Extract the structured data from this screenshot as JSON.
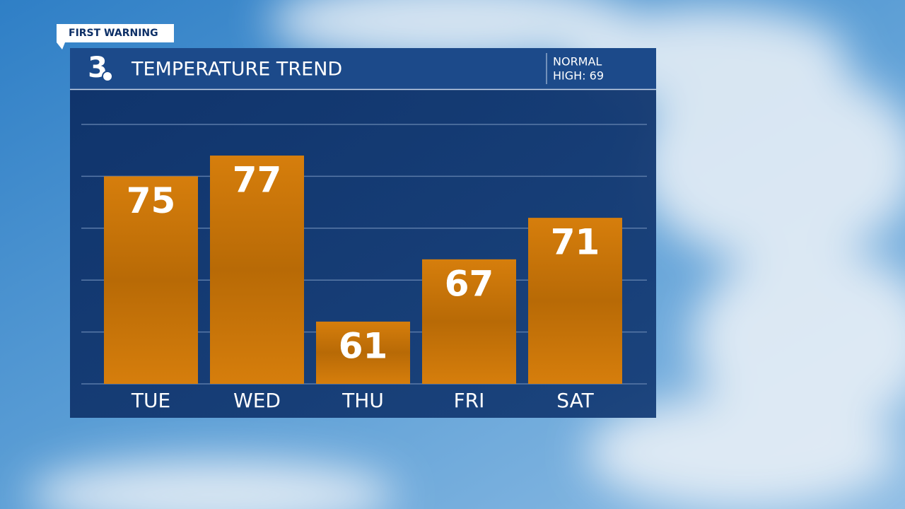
{
  "chart_data": {
    "type": "bar",
    "badge": "FIRST WARNING",
    "logo": "3",
    "title": "TEMPERATURE TREND",
    "annotation": [
      "NORMAL",
      "HIGH: 69"
    ],
    "categories": [
      "TUE",
      "WED",
      "THU",
      "FRI",
      "SAT"
    ],
    "values": [
      75,
      77,
      61,
      67,
      71
    ],
    "color": "#d47c0b",
    "ylim": [
      55,
      80
    ],
    "yticks": [
      55,
      60,
      65,
      70,
      75,
      80
    ],
    "grid": true
  }
}
